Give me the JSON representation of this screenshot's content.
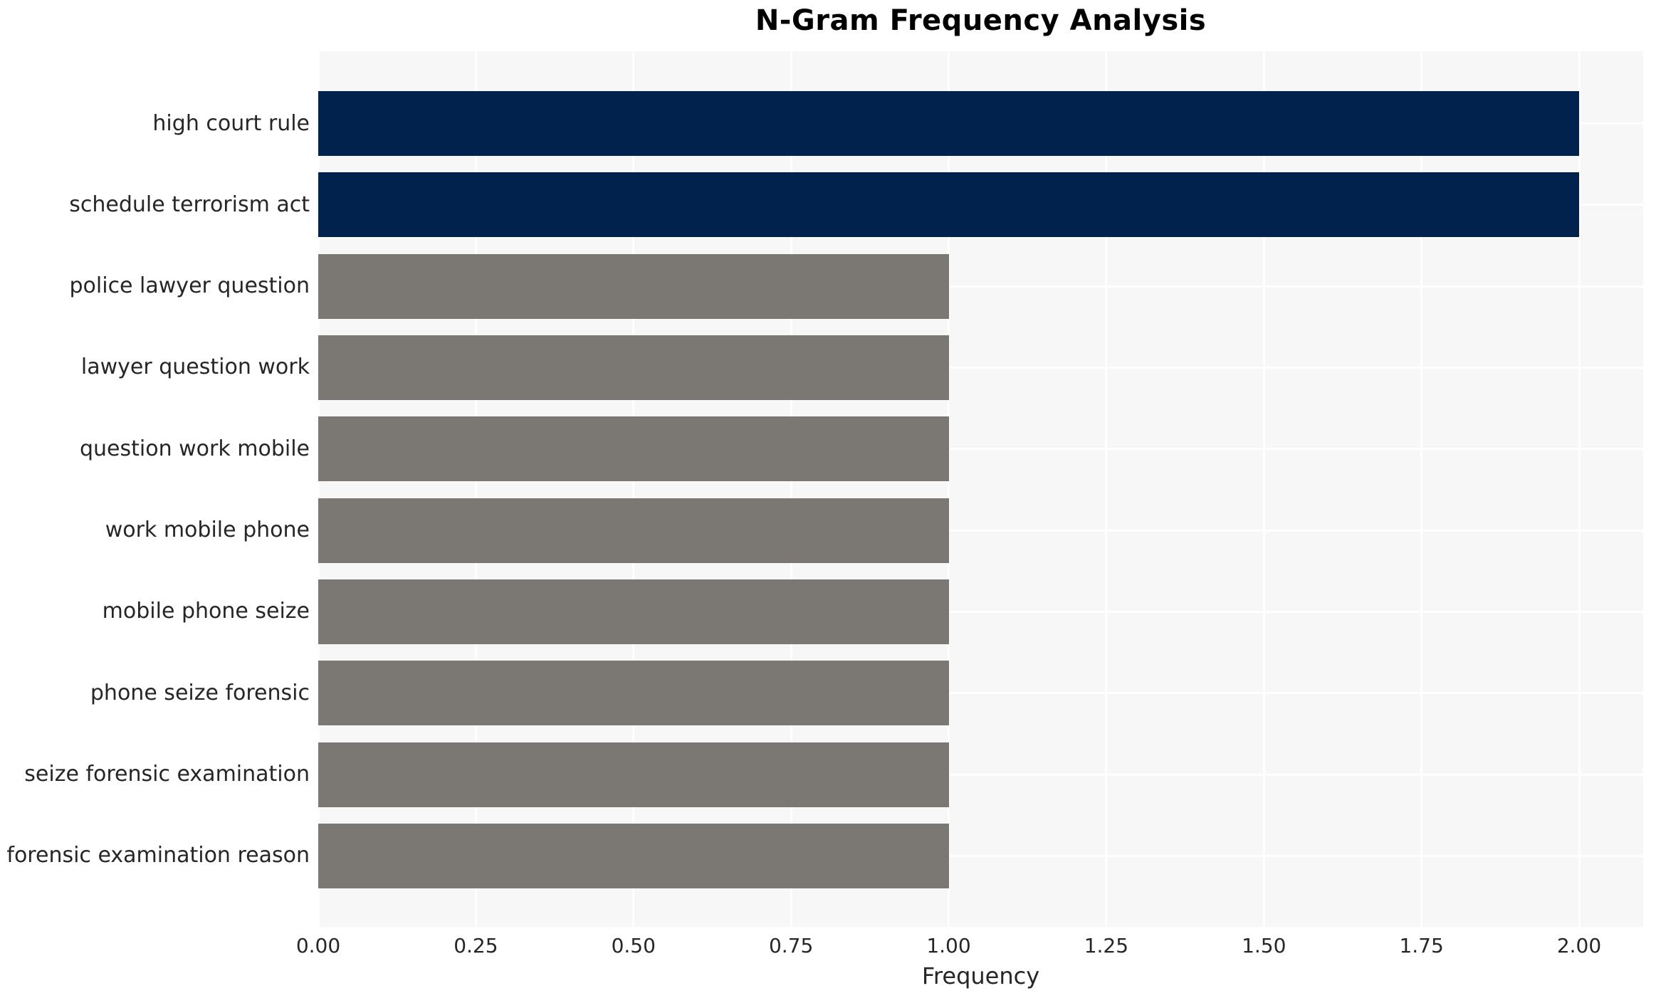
{
  "chart_data": {
    "type": "bar",
    "orientation": "horizontal",
    "title": "N-Gram Frequency Analysis",
    "xlabel": "Frequency",
    "ylabel": "",
    "categories": [
      "high court rule",
      "schedule terrorism act",
      "police lawyer question",
      "lawyer question work",
      "question work mobile",
      "work mobile phone",
      "mobile phone seize",
      "phone seize forensic",
      "seize forensic examination",
      "forensic examination reason"
    ],
    "values": [
      2.0,
      2.0,
      1.0,
      1.0,
      1.0,
      1.0,
      1.0,
      1.0,
      1.0,
      1.0
    ],
    "bar_colors": [
      "#01224c",
      "#01224c",
      "#7b7873",
      "#7b7873",
      "#7b7873",
      "#7b7873",
      "#7b7873",
      "#7b7873",
      "#7b7873",
      "#7b7873"
    ],
    "xlim": [
      0,
      2.1
    ],
    "xticks": [
      0,
      0.25,
      0.5,
      0.75,
      1.0,
      1.25,
      1.5,
      1.75,
      2.0
    ],
    "xtick_labels": [
      "0.00",
      "0.25",
      "0.50",
      "0.75",
      "1.00",
      "1.25",
      "1.50",
      "1.75",
      "2.00"
    ],
    "legend_position": "none",
    "grid": "on",
    "colors": {
      "highlight_bar": "#01224c",
      "default_bar": "#7b7873",
      "panel_background": "#f7f7f7",
      "gridline": "#ffffff",
      "tick_text": "#262626",
      "title_text": "#000000"
    }
  }
}
